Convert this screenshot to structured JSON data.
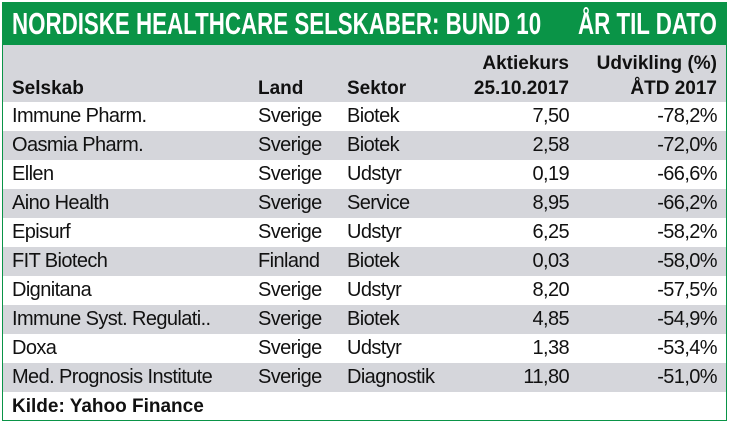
{
  "title": "NORDISKE HEALTHCARE SELSKABER: BUND 10",
  "subtitle": "ÅR TIL DATO",
  "columns": [
    {
      "line1": "",
      "line2": "Selskab"
    },
    {
      "line1": "",
      "line2": "Land"
    },
    {
      "line1": "",
      "line2": "Sektor"
    },
    {
      "line1": "Aktiekurs",
      "line2": "25.10.2017"
    },
    {
      "line1": "Udvikling (%)",
      "line2": "ÅTD 2017"
    }
  ],
  "rows": [
    [
      "Immune Pharm.",
      "Sverige",
      "Biotek",
      "7,50",
      "-78,2%"
    ],
    [
      "Oasmia Pharm.",
      "Sverige",
      "Biotek",
      "2,58",
      "-72,0%"
    ],
    [
      "Ellen",
      "Sverige",
      "Udstyr",
      "0,19",
      "-66,6%"
    ],
    [
      "Aino Health",
      "Sverige",
      "Service",
      "8,95",
      "-66,2%"
    ],
    [
      "Episurf",
      "Sverige",
      "Udstyr",
      "6,25",
      "-58,2%"
    ],
    [
      "FIT Biotech",
      "Finland",
      "Biotek",
      "0,03",
      "-58,0%"
    ],
    [
      "Dignitana",
      "Sverige",
      "Udstyr",
      "8,20",
      "-57,5%"
    ],
    [
      "Immune Syst. Regulati..",
      "Sverige",
      "Biotek",
      "4,85",
      "-54,9%"
    ],
    [
      "Doxa",
      "Sverige",
      "Udstyr",
      "1,38",
      "-53,4%"
    ],
    [
      "Med. Prognosis Institute",
      "Sverige",
      "Diagnostik",
      "11,80",
      "-51,0%"
    ]
  ],
  "source": "Kilde: Yahoo Finance",
  "colors": {
    "brand": "#0a9447",
    "stripe": "#d5d6db"
  }
}
